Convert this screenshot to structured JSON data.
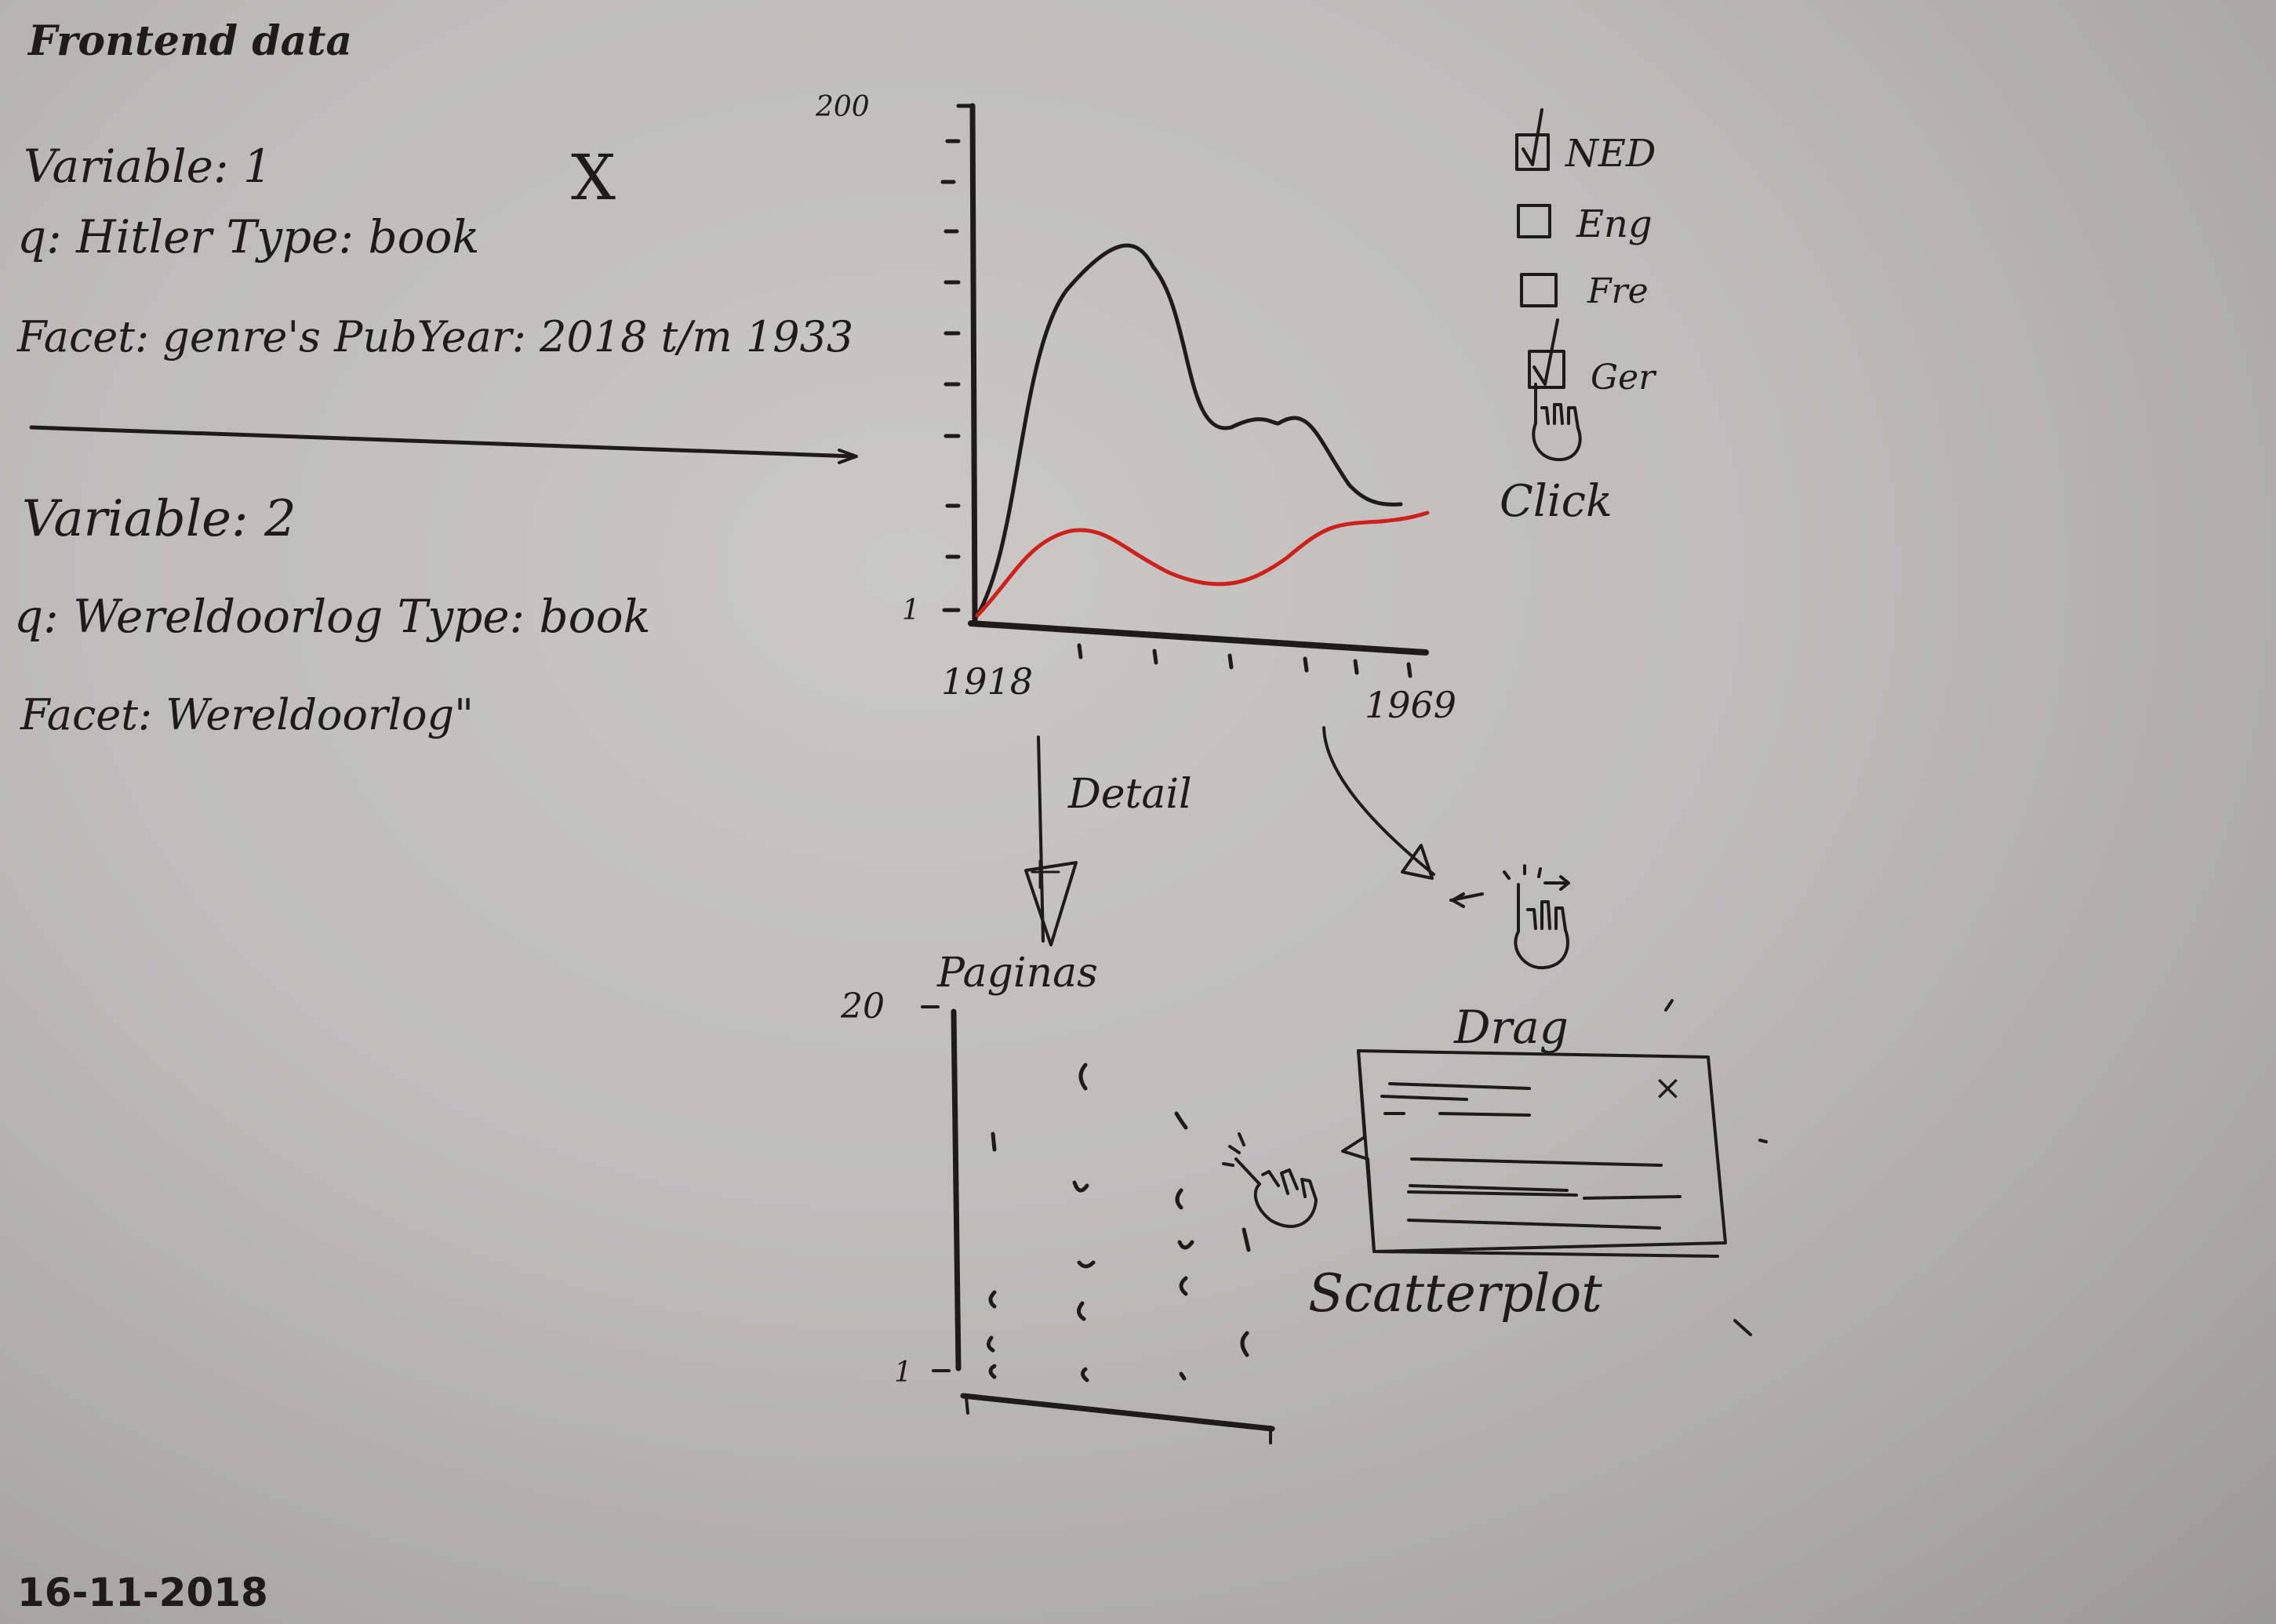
{
  "title": "Frontend data",
  "date": "16-11-2018",
  "variable1": {
    "variable": "Variable: 1",
    "query": "q: Hitler  Type: book",
    "facet": "Facet: genre's  PubYear: 2018 t/m 1933"
  },
  "variable2": {
    "variable": "Variable: 2",
    "query": "q: Wereldoorlog  Type: book",
    "facet": "Facet: Wereldoorlog\""
  },
  "remove_mark": "X",
  "line_chart": {
    "y_max_label": "200",
    "y_min_label": "1",
    "x_start_label": "1918",
    "x_end_label": "1969"
  },
  "legend": [
    {
      "label": "NED",
      "checked": true
    },
    {
      "label": "Eng",
      "checked": false
    },
    {
      "label": "Fre",
      "checked": false
    },
    {
      "label": "Ger",
      "checked": true
    }
  ],
  "click_label": "Click",
  "detail_label": "Detail",
  "drag_label": "Drag",
  "scatter": {
    "y_axis_title": "Paginas",
    "y_max_label": "20",
    "y_min_label": "1",
    "caption": "Scatterplot"
  },
  "popup_close": "×",
  "colors": {
    "ink": "#1d1c1a",
    "red_series": "#d0201c"
  }
}
